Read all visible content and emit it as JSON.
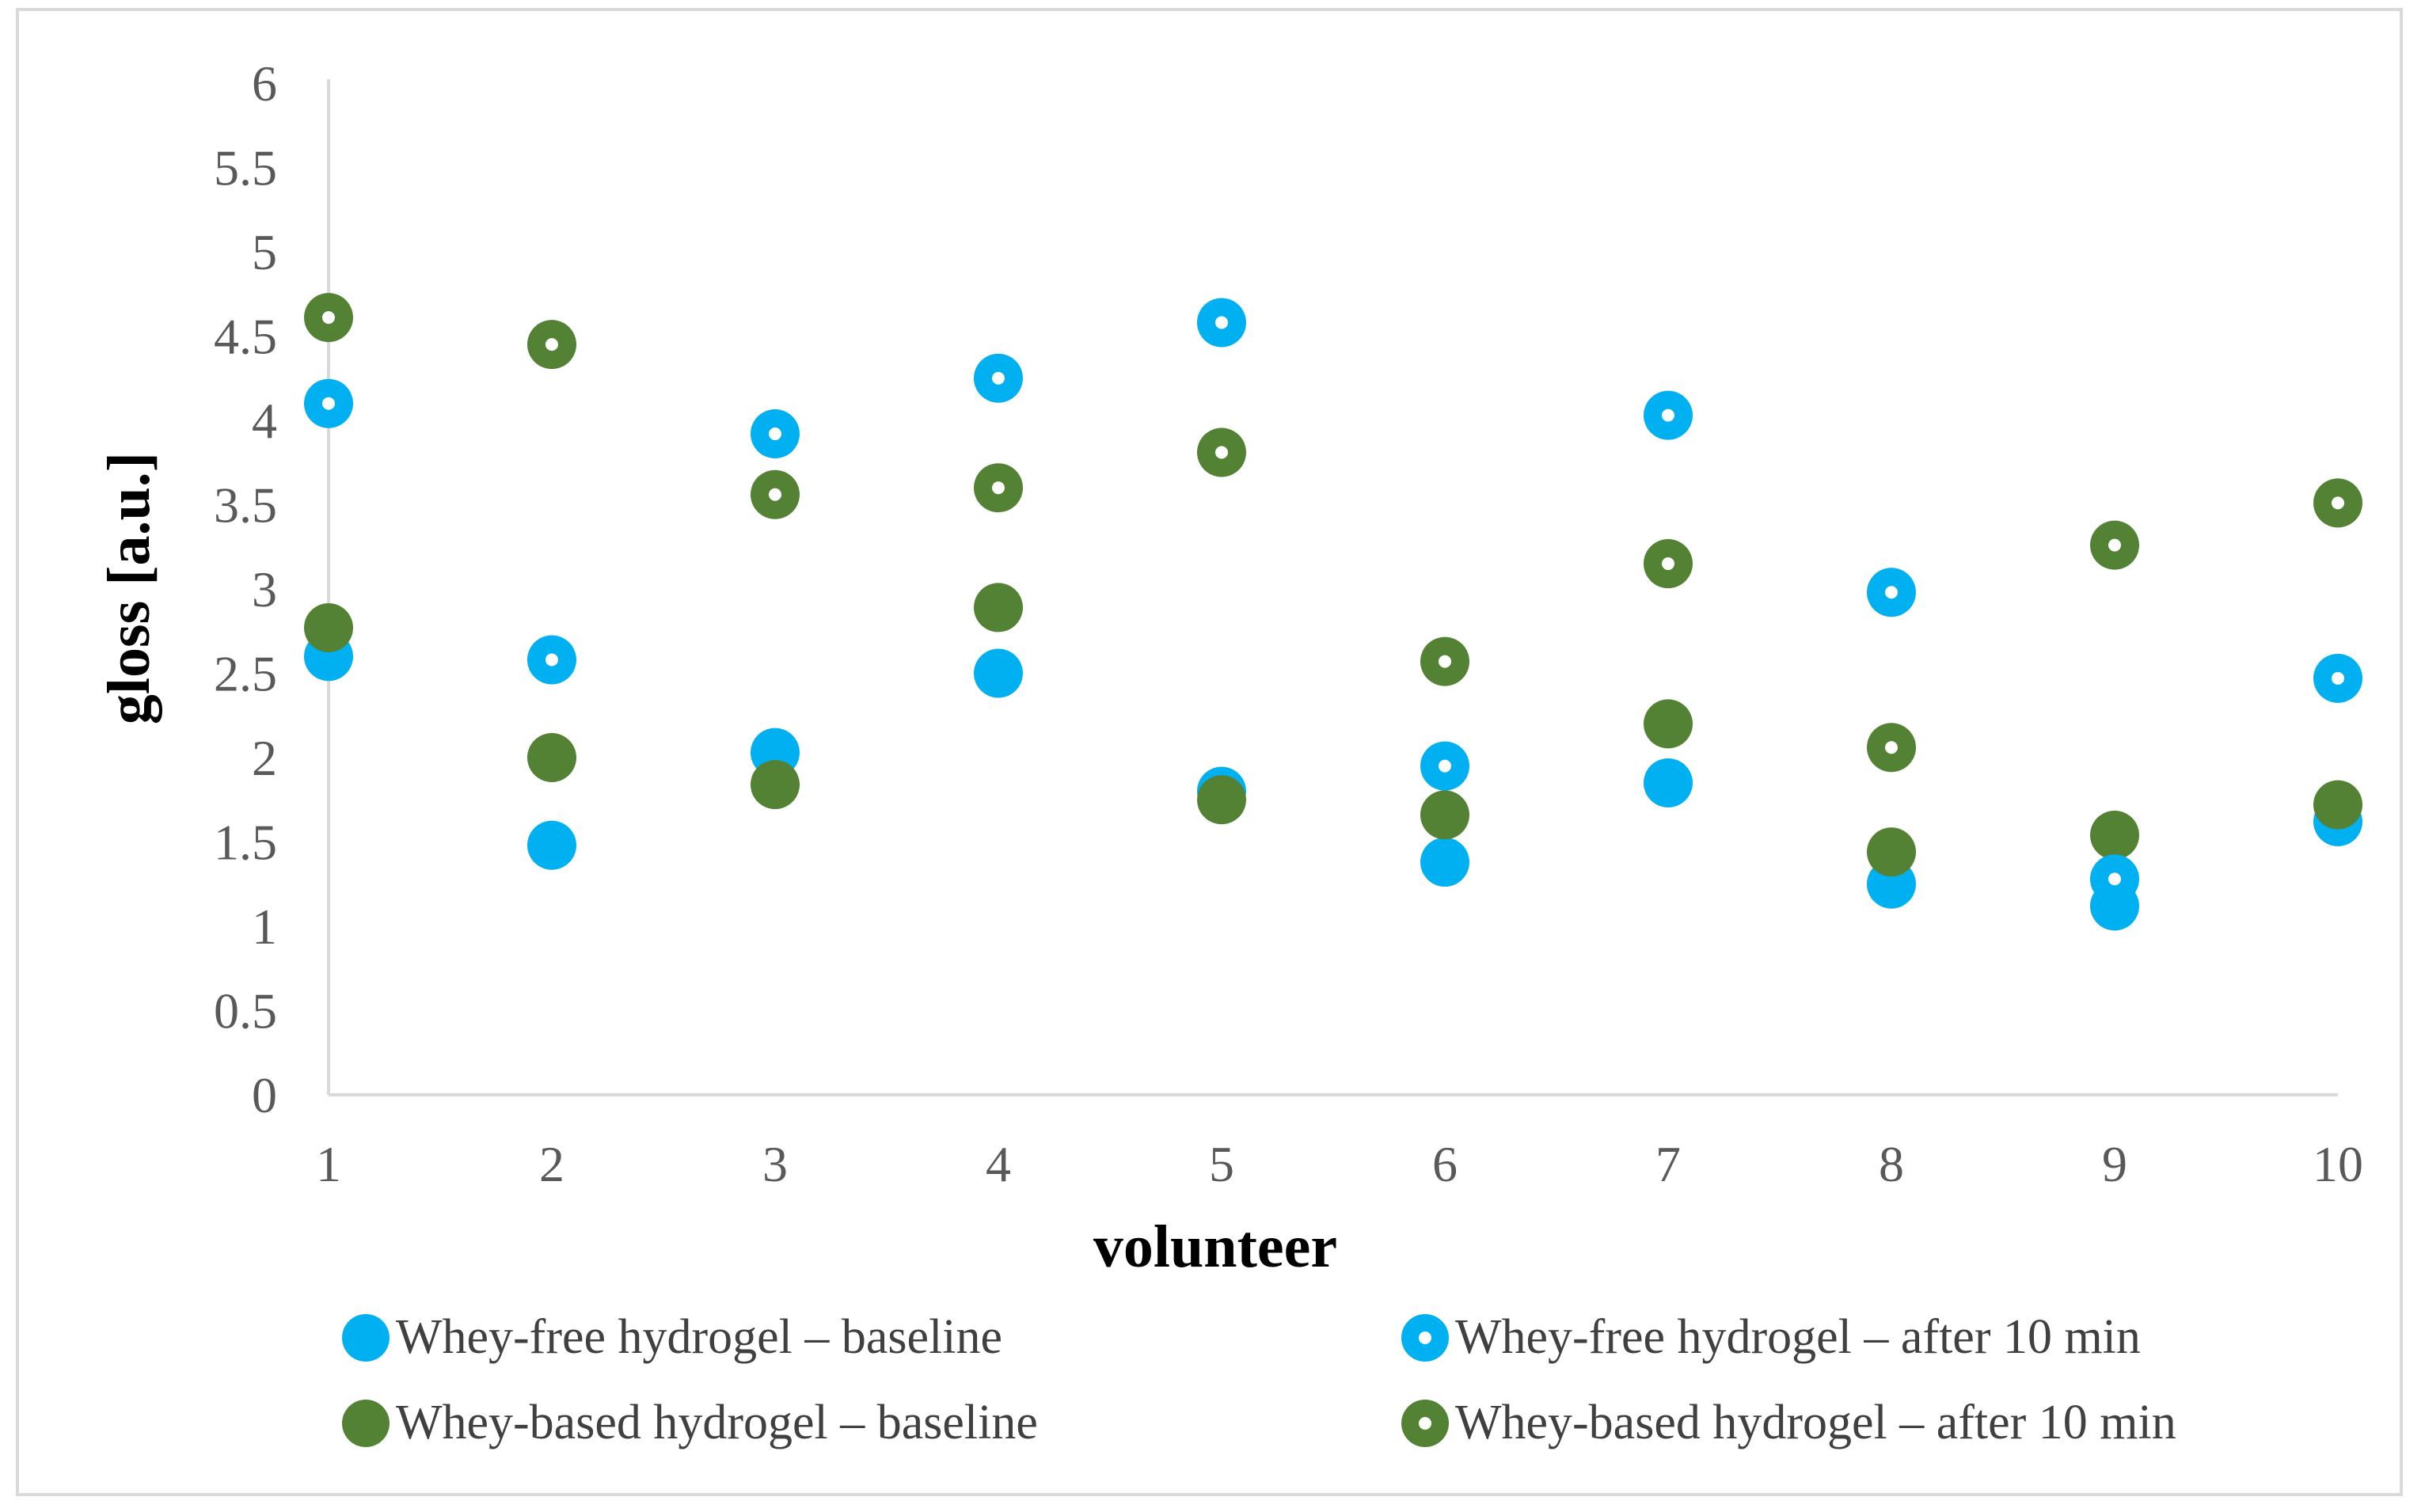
{
  "chart_data": {
    "type": "scatter",
    "title": "",
    "xlabel": "volunteer",
    "ylabel": "gloss [a.u.]",
    "x": [
      1,
      2,
      3,
      4,
      5,
      6,
      7,
      8,
      9,
      10
    ],
    "xticks": [
      "1",
      "2",
      "3",
      "4",
      "5",
      "6",
      "7",
      "8",
      "9",
      "10"
    ],
    "ylim": [
      0,
      6
    ],
    "yticks": [
      "0",
      "0.5",
      "1",
      "1.5",
      "2",
      "2.5",
      "3",
      "3.5",
      "4",
      "4.5",
      "5",
      "5.5",
      "6"
    ],
    "grid": false,
    "legend_position": "bottom",
    "series": [
      {
        "name": "Whey-free hydrogel – baseline",
        "color": "#00b0f0",
        "marker": "filled-circle",
        "values": [
          2.6,
          1.48,
          2.03,
          2.5,
          1.8,
          1.38,
          1.85,
          1.25,
          1.12,
          1.62
        ]
      },
      {
        "name": "Whey-free hydrogel – after 10 min",
        "color": "#00b0f0",
        "marker": "dotted-circle",
        "values": [
          4.1,
          2.58,
          3.92,
          4.25,
          4.58,
          1.95,
          4.03,
          2.98,
          1.28,
          2.47
        ]
      },
      {
        "name": "Whey-based hydrogel – baseline",
        "color": "#548235",
        "marker": "filled-circle",
        "values": [
          2.77,
          2.0,
          1.84,
          2.89,
          1.75,
          1.66,
          2.2,
          1.44,
          1.54,
          1.72
        ]
      },
      {
        "name": "Whey-based hydrogel – after 10 min",
        "color": "#548235",
        "marker": "dotted-circle",
        "values": [
          4.61,
          4.45,
          3.56,
          3.6,
          3.81,
          2.57,
          3.15,
          2.06,
          3.26,
          3.51
        ]
      }
    ]
  }
}
